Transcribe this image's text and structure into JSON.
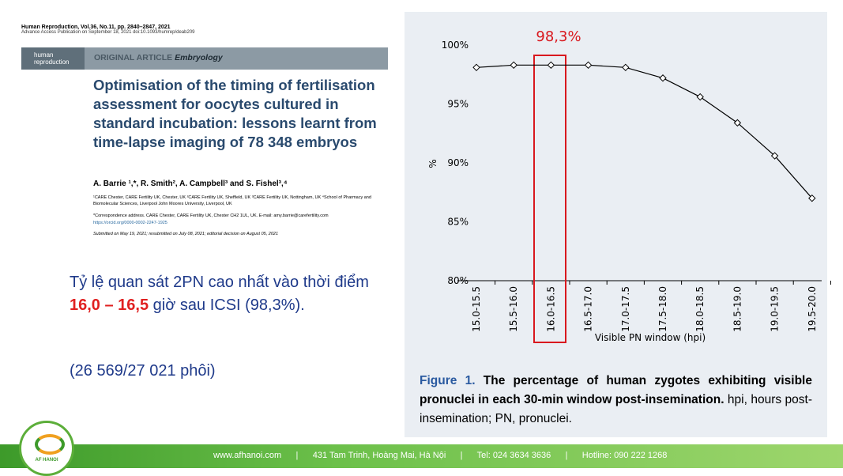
{
  "paper": {
    "journal": "Human Reproduction, Vol.36, No.11, pp. 2840–2847, 2021",
    "access": "Advance Access Publication on September 18, 2021   doi:10.1093/humrep/deab209",
    "brand_1": "human",
    "brand_2": "reproduction",
    "article_type": "ORIGINAL ARTICLE",
    "section": "Embryology",
    "title": "Optimisation of the timing of fertilisation assessment for oocytes cultured in standard incubation: lessons learnt from time-lapse imaging of 78 348 embryos",
    "authors": "A. Barrie ¹,*, R. Smith², A. Campbell³ and S. Fishel³,⁴",
    "affiliations": "¹CARE Chester, CARE Fertility UK, Chester, UK ²CARE Fertility UK, Sheffield, UK ³CARE Fertility UK, Nottingham, UK ⁴School of Pharmacy and Biomolecular Sciences, Liverpool John Moores University, Liverpool, UK",
    "correspondence": "*Correspondence address. CARE Chester, CARE Fertility UK, Chester CH2 1UL, UK. E-mail: amy.barrie@carefertility.com",
    "orcid": "https://orcid.org/0000-0002-2247-1925",
    "submitted": "Submitted on May 19, 2021; resubmitted on July 08, 2021; editorial decision on August 05, 2021"
  },
  "summary": {
    "text_1": "Tỷ lệ quan sát 2PN cao nhất vào thời điểm ",
    "highlight": "16,0 – 16,5",
    "text_2": " giờ sau ICSI (98,3%).",
    "count": "(26 569/27 021 phôi)"
  },
  "chart_data": {
    "type": "line",
    "annotation": "98,3%",
    "x_label": "Visible PN window (hpi)",
    "y_label": "%",
    "color": "#000000",
    "highlight_color": "#d9181e",
    "categories": [
      "15.0-15.5",
      "15.5-16.0",
      "16.0-16.5",
      "16.5-17.0",
      "17.0-17.5",
      "17.5-18.0",
      "18.0-18.5",
      "18.5-19.0",
      "19.0-19.5",
      "19.5-20.0"
    ],
    "values": [
      98.1,
      98.3,
      98.3,
      98.3,
      98.1,
      97.2,
      95.6,
      93.4,
      90.6,
      87.0
    ],
    "ylim": [
      80,
      100
    ],
    "yticks": [
      {
        "value": 80,
        "label": "80%"
      },
      {
        "value": 85,
        "label": "85%"
      },
      {
        "value": 90,
        "label": "90%"
      },
      {
        "value": 95,
        "label": "95%"
      },
      {
        "value": 100,
        "label": "100%"
      }
    ],
    "grid": false,
    "caption_label": "Figure 1.",
    "caption_bold": " The percentage of human zygotes exhibiting visible pronuclei in each 30-min window post-insemination.",
    "caption_rest": " hpi, hours post-insemination; PN, pronuclei."
  },
  "footer": {
    "logo": "AF HANOI",
    "website": "www.afhanoi.com",
    "address": "431 Tam Trinh, Hoàng Mai, Hà Nội",
    "phone": "Tel: 024 3634 3636",
    "hotline": "Hotline: 090 222 1268"
  }
}
